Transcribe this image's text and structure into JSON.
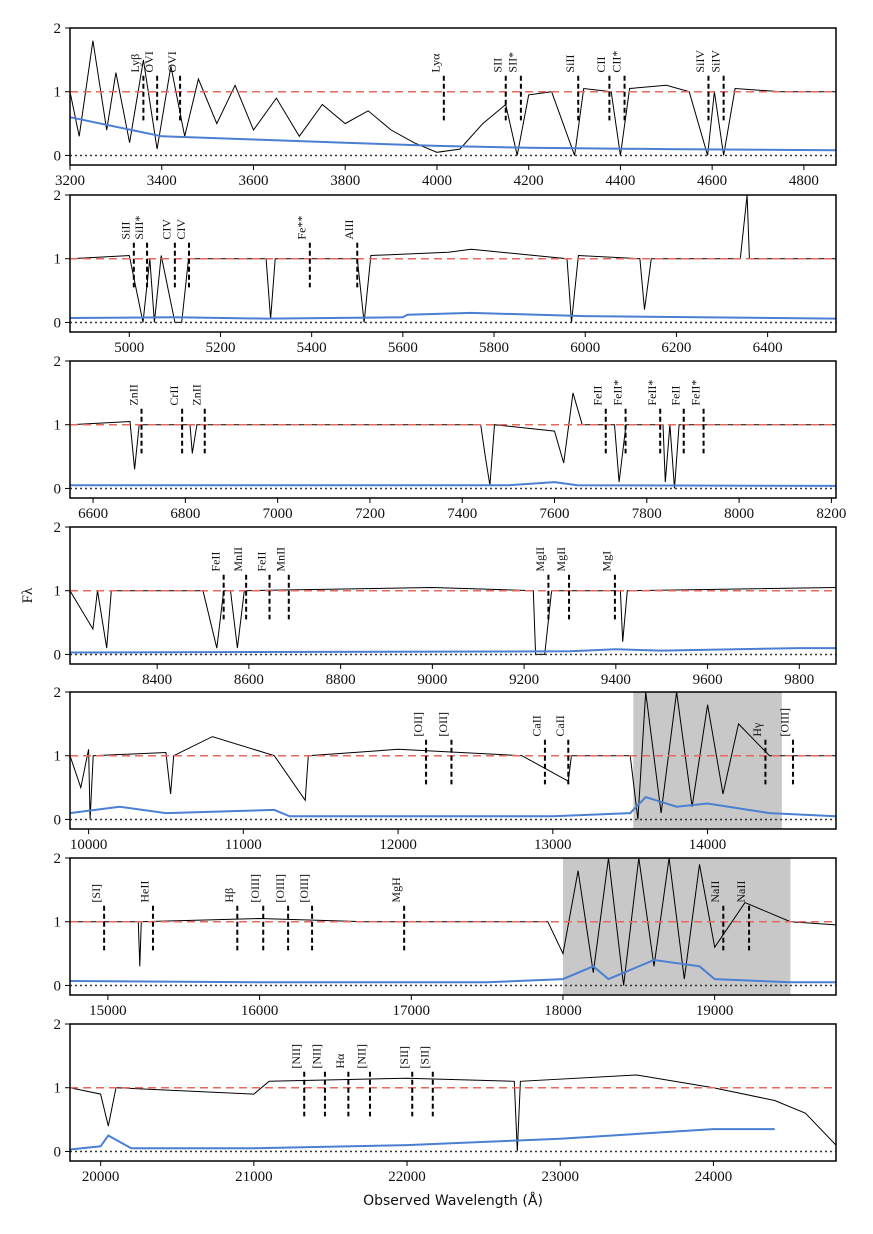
{
  "chart_data": [
    {
      "type": "line",
      "xlim": [
        3200,
        4870
      ],
      "xticks": [
        3200,
        3400,
        3600,
        3800,
        4000,
        4200,
        4400,
        4600,
        4800
      ],
      "ylim": [
        -0.15,
        2
      ],
      "yticks": [
        0,
        1,
        2
      ],
      "hlines": [
        {
          "value": 1,
          "color": "#e8685e"
        },
        {
          "value": 0,
          "color": "#333333"
        }
      ],
      "series": [
        {
          "color": "#000000",
          "x": [
            3200,
            3220,
            3250,
            3280,
            3300,
            3330,
            3360,
            3390,
            3420,
            3450,
            3480,
            3520,
            3560,
            3600,
            3650,
            3700,
            3750,
            3800,
            3850,
            3900,
            3950,
            4000,
            4050,
            4100,
            4150,
            4175,
            4200,
            4250,
            4300,
            4320,
            4380,
            4400,
            4420,
            4500,
            4550,
            4590,
            4605,
            4625,
            4650,
            4750,
            4870
          ],
          "values": [
            1.0,
            0.3,
            1.8,
            0.4,
            1.3,
            0.2,
            1.5,
            0.1,
            1.4,
            0.3,
            1.2,
            0.5,
            1.1,
            0.4,
            0.9,
            0.3,
            0.8,
            0.5,
            0.7,
            0.4,
            0.2,
            0.05,
            0.1,
            0.5,
            0.8,
            0.0,
            0.95,
            1.0,
            0.0,
            1.05,
            1.0,
            0.0,
            1.05,
            1.1,
            1.0,
            0.0,
            1.0,
            0.0,
            1.05,
            1.0,
            1.0
          ]
        },
        {
          "color": "#4a7fd4",
          "x": [
            3200,
            3400,
            3600,
            3800,
            4000,
            4200,
            4500,
            4870
          ],
          "values": [
            0.6,
            0.3,
            0.25,
            0.2,
            0.15,
            0.12,
            0.1,
            0.08
          ]
        }
      ],
      "lines": [
        {
          "label": "Lyβ",
          "x": 3360
        },
        {
          "label": "OVI",
          "x": 3390
        },
        {
          "label": "OVI",
          "x": 3440
        },
        {
          "label": "Lyα",
          "x": 4015
        },
        {
          "label": "SII",
          "x": 4150
        },
        {
          "label": "SII*",
          "x": 4183
        },
        {
          "label": "SiII",
          "x": 4308
        },
        {
          "label": "CII",
          "x": 4376
        },
        {
          "label": "CII*",
          "x": 4409
        },
        {
          "label": "SiIV",
          "x": 4592
        },
        {
          "label": "SiIV",
          "x": 4625
        }
      ]
    },
    {
      "type": "line",
      "xlim": [
        4870,
        6550
      ],
      "xticks": [
        5000,
        5200,
        5400,
        5600,
        5800,
        6000,
        6200,
        6400
      ],
      "ylim": [
        -0.15,
        2
      ],
      "yticks": [
        0,
        1,
        2
      ],
      "hlines": [
        {
          "value": 1,
          "color": "#e8685e"
        },
        {
          "value": 0,
          "color": "#333333"
        }
      ],
      "series": [
        {
          "color": "#000000",
          "x": [
            4870,
            5000,
            5030,
            5045,
            5055,
            5070,
            5100,
            5115,
            5130,
            5300,
            5310,
            5320,
            5500,
            5515,
            5530,
            5700,
            5750,
            5960,
            5970,
            5985,
            6120,
            6130,
            6145,
            6340,
            6355,
            6360,
            6550
          ],
          "values": [
            1.0,
            1.05,
            0.0,
            1.0,
            0.0,
            1.05,
            0.0,
            0.0,
            1.0,
            1.0,
            0.05,
            1.0,
            1.0,
            0.0,
            1.05,
            1.1,
            1.15,
            1.0,
            0.0,
            1.05,
            1.0,
            0.2,
            1.0,
            1.0,
            2.0,
            1.0,
            1.0
          ]
        },
        {
          "color": "#4a7fd4",
          "x": [
            4870,
            5100,
            5300,
            5600,
            5610,
            5750,
            6000,
            6550
          ],
          "values": [
            0.07,
            0.08,
            0.06,
            0.08,
            0.12,
            0.15,
            0.1,
            0.06
          ]
        }
      ],
      "lines": [
        {
          "label": "SiII",
          "x": 5010
        },
        {
          "label": "SiII*",
          "x": 5039
        },
        {
          "label": "CIV",
          "x": 5100
        },
        {
          "label": "CIV",
          "x": 5131
        },
        {
          "label": "Fe**",
          "x": 5396
        },
        {
          "label": "AlII",
          "x": 5500
        }
      ]
    },
    {
      "type": "line",
      "xlim": [
        6550,
        8210
      ],
      "xticks": [
        6600,
        6800,
        7000,
        7200,
        7400,
        7600,
        7800,
        8000,
        8200
      ],
      "ylim": [
        -0.15,
        2
      ],
      "yticks": [
        0,
        1,
        2
      ],
      "hlines": [
        {
          "value": 1,
          "color": "#e8685e"
        },
        {
          "value": 0,
          "color": "#333333"
        }
      ],
      "series": [
        {
          "color": "#000000",
          "x": [
            6550,
            6680,
            6690,
            6700,
            6810,
            6815,
            6825,
            7440,
            7450,
            7460,
            7470,
            7600,
            7620,
            7640,
            7660,
            7730,
            7740,
            7755,
            7835,
            7840,
            7850,
            7860,
            7870,
            8210
          ],
          "values": [
            1.0,
            1.05,
            0.3,
            1.0,
            1.0,
            0.55,
            1.0,
            1.0,
            0.5,
            0.05,
            1.0,
            0.9,
            0.4,
            1.5,
            1.0,
            1.0,
            0.1,
            1.0,
            1.0,
            0.1,
            1.0,
            0.0,
            1.0,
            1.0
          ]
        },
        {
          "color": "#4a7fd4",
          "x": [
            6550,
            7000,
            7500,
            7600,
            7650,
            8210
          ],
          "values": [
            0.05,
            0.05,
            0.05,
            0.1,
            0.05,
            0.04
          ]
        }
      ],
      "lines": [
        {
          "label": "ZnII",
          "x": 6705
        },
        {
          "label": "CrII",
          "x": 6793
        },
        {
          "label": "ZnII",
          "x": 6842
        },
        {
          "label": "FeII",
          "x": 7711
        },
        {
          "label": "FeII*",
          "x": 7754
        },
        {
          "label": "FeII*",
          "x": 7829
        },
        {
          "label": "FeII",
          "x": 7880
        },
        {
          "label": "FeII*",
          "x": 7923
        }
      ]
    },
    {
      "type": "line",
      "ylabel": "Fλ",
      "xlim": [
        8210,
        9880
      ],
      "xticks": [
        8400,
        8600,
        8800,
        9000,
        9200,
        9400,
        9600,
        9800
      ],
      "ylim": [
        -0.15,
        2
      ],
      "yticks": [
        0,
        1,
        2
      ],
      "hlines": [
        {
          "value": 1,
          "color": "#e8685e"
        },
        {
          "value": 0,
          "color": "#333333"
        }
      ],
      "series": [
        {
          "color": "#000000",
          "x": [
            8210,
            8260,
            8270,
            8290,
            8300,
            8500,
            8530,
            8545,
            8560,
            8575,
            8590,
            9000,
            9220,
            9225,
            9245,
            9260,
            9410,
            9415,
            9425,
            9880
          ],
          "values": [
            1.0,
            0.4,
            1.0,
            0.1,
            1.0,
            1.0,
            0.1,
            1.0,
            1.0,
            0.1,
            1.0,
            1.05,
            1.0,
            0.0,
            0.0,
            1.0,
            1.0,
            0.2,
            1.0,
            1.05
          ]
        },
        {
          "color": "#4a7fd4",
          "x": [
            8210,
            9300,
            9400,
            9500,
            9800,
            9880
          ],
          "values": [
            0.03,
            0.05,
            0.08,
            0.06,
            0.1,
            0.1
          ]
        }
      ],
      "lines": [
        {
          "label": "FeII",
          "x": 8545
        },
        {
          "label": "MnII",
          "x": 8594
        },
        {
          "label": "FeII",
          "x": 8645
        },
        {
          "label": "MnII",
          "x": 8687
        },
        {
          "label": "MgII",
          "x": 9253
        },
        {
          "label": "MgII",
          "x": 9298
        },
        {
          "label": "MgI",
          "x": 9398
        }
      ]
    },
    {
      "type": "line",
      "xlim": [
        9880,
        14830
      ],
      "xticks": [
        10000,
        11000,
        12000,
        13000,
        14000
      ],
      "ylim": [
        -0.15,
        2
      ],
      "yticks": [
        0,
        1,
        2
      ],
      "shade": [
        13520,
        14480
      ],
      "hlines": [
        {
          "value": 1,
          "color": "#e8685e"
        },
        {
          "value": 0,
          "color": "#333333"
        }
      ],
      "series": [
        {
          "color": "#000000",
          "x": [
            9880,
            9950,
            10000,
            10010,
            10030,
            10500,
            10530,
            10550,
            10800,
            11200,
            11400,
            11420,
            12000,
            12800,
            13100,
            13120,
            13500,
            13550,
            13600,
            13700,
            13800,
            13900,
            14000,
            14100,
            14200,
            14400,
            14830
          ],
          "values": [
            1.0,
            0.5,
            1.1,
            0.0,
            1.0,
            1.05,
            0.4,
            1.0,
            1.3,
            1.0,
            0.3,
            1.0,
            1.1,
            1.0,
            0.6,
            1.0,
            1.0,
            0.0,
            2.0,
            0.1,
            2.0,
            0.2,
            1.8,
            0.4,
            1.5,
            1.0,
            1.0
          ]
        },
        {
          "color": "#4a7fd4",
          "x": [
            9880,
            10200,
            10500,
            11200,
            11300,
            12000,
            13000,
            13500,
            13600,
            13800,
            14000,
            14400,
            14830
          ],
          "values": [
            0.1,
            0.2,
            0.1,
            0.15,
            0.05,
            0.05,
            0.05,
            0.1,
            0.35,
            0.2,
            0.25,
            0.1,
            0.05
          ]
        }
      ],
      "lines": [
        {
          "label": "[OII]",
          "x": 12181
        },
        {
          "label": "[OII]",
          "x": 12345
        },
        {
          "label": "CaII",
          "x": 12949
        },
        {
          "label": "CaII",
          "x": 13100
        },
        {
          "label": "Hγ",
          "x": 14374
        },
        {
          "label": "[OIII]",
          "x": 14552
        }
      ]
    },
    {
      "type": "line",
      "xlim": [
        14750,
        19800
      ],
      "xticks": [
        15000,
        16000,
        17000,
        18000,
        19000
      ],
      "ylim": [
        -0.15,
        2
      ],
      "yticks": [
        0,
        1,
        2
      ],
      "shade": [
        18000,
        19500
      ],
      "hlines": [
        {
          "value": 1,
          "color": "#e8685e"
        },
        {
          "value": 0,
          "color": "#333333"
        }
      ],
      "series": [
        {
          "color": "#000000",
          "x": [
            14750,
            15200,
            15210,
            15220,
            16000,
            16700,
            17900,
            18000,
            18100,
            18200,
            18300,
            18400,
            18500,
            18600,
            18700,
            18800,
            18900,
            19000,
            19200,
            19500,
            19800
          ],
          "values": [
            1.0,
            1.0,
            0.3,
            1.0,
            1.05,
            1.0,
            1.0,
            0.5,
            1.8,
            0.2,
            2.0,
            0.0,
            2.0,
            0.3,
            2.0,
            0.1,
            1.9,
            0.6,
            1.3,
            1.0,
            0.95
          ]
        },
        {
          "color": "#4a7fd4",
          "x": [
            14750,
            16000,
            17500,
            18000,
            18200,
            18300,
            18600,
            18900,
            19000,
            19500,
            19800
          ],
          "values": [
            0.07,
            0.05,
            0.05,
            0.1,
            0.3,
            0.1,
            0.4,
            0.3,
            0.1,
            0.05,
            0.05
          ]
        }
      ],
      "lines": [
        {
          "label": "[SI]",
          "x": 14975
        },
        {
          "label": "HeII",
          "x": 15297
        },
        {
          "label": "Hβ",
          "x": 15853
        },
        {
          "label": "[OIII]",
          "x": 16024
        },
        {
          "label": "[OIII]",
          "x": 16188
        },
        {
          "label": "[OIII]",
          "x": 16346
        },
        {
          "label": "MgH",
          "x": 16953
        },
        {
          "label": "NaII",
          "x": 19057
        },
        {
          "label": "NaII",
          "x": 19227
        }
      ]
    },
    {
      "type": "line",
      "xlabel": "Observed Wavelength (Å)",
      "xlim": [
        19800,
        24800
      ],
      "xticks": [
        20000,
        21000,
        22000,
        23000,
        24000
      ],
      "ylim": [
        -0.15,
        2
      ],
      "yticks": [
        0,
        1,
        2
      ],
      "hlines": [
        {
          "value": 1,
          "color": "#e8685e"
        },
        {
          "value": 0,
          "color": "#333333"
        }
      ],
      "series": [
        {
          "color": "#000000",
          "x": [
            19800,
            20000,
            20050,
            20100,
            21000,
            21100,
            22000,
            22700,
            22720,
            22740,
            23500,
            24000,
            24400,
            24600,
            24800
          ],
          "values": [
            1.0,
            0.9,
            0.4,
            1.0,
            0.9,
            1.1,
            1.15,
            1.1,
            0.0,
            1.1,
            1.2,
            1.0,
            0.8,
            0.6,
            0.1
          ]
        },
        {
          "color": "#4a7fd4",
          "x": [
            19800,
            20000,
            20050,
            20200,
            21000,
            22000,
            23000,
            24000,
            24400
          ],
          "values": [
            0.03,
            0.08,
            0.25,
            0.05,
            0.05,
            0.1,
            0.2,
            0.35,
            0.35
          ]
        }
      ],
      "lines": [
        {
          "label": "[NII]",
          "x": 21329
        },
        {
          "label": "[NII]",
          "x": 21464
        },
        {
          "label": "Hα",
          "x": 21617
        },
        {
          "label": "[NII]",
          "x": 21758
        },
        {
          "label": "[SII]",
          "x": 22034
        },
        {
          "label": "[SII]",
          "x": 22168
        }
      ]
    }
  ]
}
